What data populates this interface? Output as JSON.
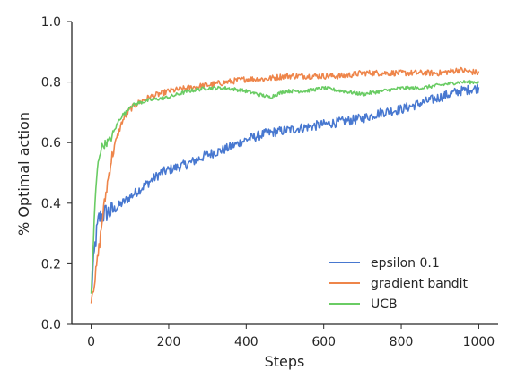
{
  "chart_data": {
    "type": "line",
    "title": "",
    "xlabel": "Steps",
    "ylabel": "% Optimal action",
    "xlim": [
      -50,
      1050
    ],
    "ylim": [
      0,
      1.0
    ],
    "xticks": [
      0,
      200,
      400,
      600,
      800,
      1000
    ],
    "yticks": [
      0.0,
      0.2,
      0.4,
      0.6,
      0.8,
      1.0
    ],
    "xtick_labels": [
      "0",
      "200",
      "400",
      "600",
      "800",
      "1000"
    ],
    "ytick_labels": [
      "0.0",
      "0.2",
      "0.4",
      "0.6",
      "0.8",
      "1.0"
    ],
    "grid": false,
    "legend_position": "lower-right",
    "series": [
      {
        "name": "epsilon 0.1",
        "color": "#4878d0",
        "x": [
          0,
          5,
          10,
          15,
          20,
          30,
          40,
          50,
          60,
          80,
          100,
          120,
          140,
          160,
          180,
          200,
          250,
          300,
          350,
          400,
          450,
          500,
          550,
          600,
          650,
          700,
          750,
          800,
          850,
          900,
          950,
          1000
        ],
        "y": [
          0.1,
          0.18,
          0.26,
          0.31,
          0.35,
          0.36,
          0.37,
          0.37,
          0.38,
          0.4,
          0.42,
          0.44,
          0.46,
          0.48,
          0.5,
          0.51,
          0.53,
          0.56,
          0.58,
          0.61,
          0.63,
          0.64,
          0.65,
          0.66,
          0.67,
          0.68,
          0.7,
          0.71,
          0.73,
          0.75,
          0.77,
          0.78
        ]
      },
      {
        "name": "gradient bandit",
        "color": "#ee854a",
        "x": [
          0,
          10,
          20,
          30,
          40,
          50,
          60,
          70,
          80,
          90,
          100,
          120,
          150,
          200,
          250,
          300,
          350,
          400,
          450,
          500,
          550,
          600,
          650,
          700,
          750,
          800,
          850,
          900,
          950,
          1000
        ],
        "y": [
          0.09,
          0.15,
          0.25,
          0.36,
          0.45,
          0.53,
          0.59,
          0.63,
          0.67,
          0.69,
          0.71,
          0.73,
          0.75,
          0.77,
          0.78,
          0.79,
          0.8,
          0.81,
          0.81,
          0.82,
          0.82,
          0.82,
          0.82,
          0.83,
          0.83,
          0.83,
          0.83,
          0.83,
          0.84,
          0.83
        ]
      },
      {
        "name": "UCB",
        "color": "#6acc64",
        "x": [
          0,
          5,
          10,
          15,
          20,
          25,
          30,
          40,
          50,
          60,
          70,
          80,
          90,
          100,
          120,
          150,
          200,
          250,
          300,
          350,
          400,
          430,
          460,
          500,
          550,
          600,
          650,
          700,
          750,
          800,
          850,
          900,
          950,
          1000
        ],
        "y": [
          0.1,
          0.25,
          0.4,
          0.5,
          0.55,
          0.58,
          0.59,
          0.6,
          0.61,
          0.64,
          0.67,
          0.69,
          0.7,
          0.72,
          0.73,
          0.74,
          0.75,
          0.77,
          0.78,
          0.78,
          0.77,
          0.76,
          0.75,
          0.77,
          0.77,
          0.78,
          0.77,
          0.76,
          0.77,
          0.78,
          0.78,
          0.79,
          0.8,
          0.8
        ]
      }
    ]
  }
}
